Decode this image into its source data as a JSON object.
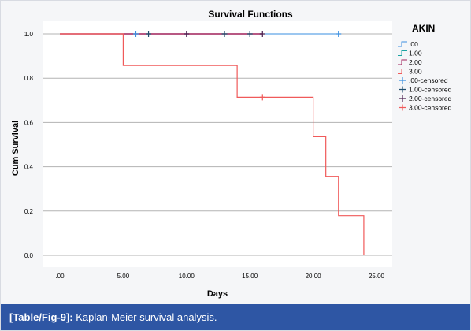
{
  "caption": {
    "label": "[Table/Fig-9]:",
    "text": "Kaplan-Meier survival analysis."
  },
  "colors": {
    "frame_background": "#f5f6f8",
    "caption_background": "#2e56a4",
    "caption_text": "#ffffff",
    "gridline": "#b3b3b3",
    "series_000": "#3a8fe0",
    "series_100": "#1aa3a3",
    "series_200": "#a0205a",
    "series_300": "#f05a5a",
    "censored_000": "#3a8fe0",
    "censored_100": "#1f4e6e",
    "censored_200": "#4a1f4f",
    "censored_300": "#f05a5a"
  },
  "chart_data": {
    "type": "line",
    "title": "Survival Functions",
    "xlabel": "Days",
    "ylabel": "Cum Survival",
    "xlim": [
      0,
      25
    ],
    "ylim": [
      0,
      1
    ],
    "x_ticks": [
      ".00",
      "5.00",
      "10.00",
      "15.00",
      "20.00",
      "25.00"
    ],
    "y_ticks": [
      "0.0",
      "0.2",
      "0.4",
      "0.6",
      "0.8",
      "1.0"
    ],
    "grid": "horizontal",
    "legend": {
      "title": "AKIN",
      "placement": "right",
      "entries": [
        ".00",
        "1.00",
        "2.00",
        "3.00",
        ".00-censored",
        "1.00-censored",
        "2.00-censored",
        "3.00-censored"
      ]
    },
    "series": [
      {
        "name": ".00",
        "steps": [
          [
            0,
            1.0
          ],
          [
            22,
            1.0
          ]
        ],
        "censored": [
          [
            6,
            1.0
          ],
          [
            22,
            1.0
          ]
        ]
      },
      {
        "name": "1.00",
        "steps": [
          [
            0,
            1.0
          ],
          [
            15,
            1.0
          ]
        ],
        "censored": [
          [
            7,
            1.0
          ],
          [
            13,
            1.0
          ],
          [
            15,
            1.0
          ]
        ]
      },
      {
        "name": "2.00",
        "steps": [
          [
            0,
            1.0
          ],
          [
            16,
            1.0
          ]
        ],
        "censored": [
          [
            10,
            1.0
          ],
          [
            16,
            1.0
          ]
        ]
      },
      {
        "name": "3.00",
        "steps": [
          [
            0,
            1.0
          ],
          [
            5,
            1.0
          ],
          [
            5,
            0.857
          ],
          [
            14,
            0.857
          ],
          [
            14,
            0.714
          ],
          [
            20,
            0.714
          ],
          [
            20,
            0.536
          ],
          [
            21,
            0.536
          ],
          [
            21,
            0.357
          ],
          [
            22,
            0.357
          ],
          [
            22,
            0.179
          ],
          [
            24,
            0.179
          ],
          [
            24,
            0.0
          ]
        ],
        "censored": [
          [
            16,
            0.714
          ]
        ]
      }
    ]
  }
}
